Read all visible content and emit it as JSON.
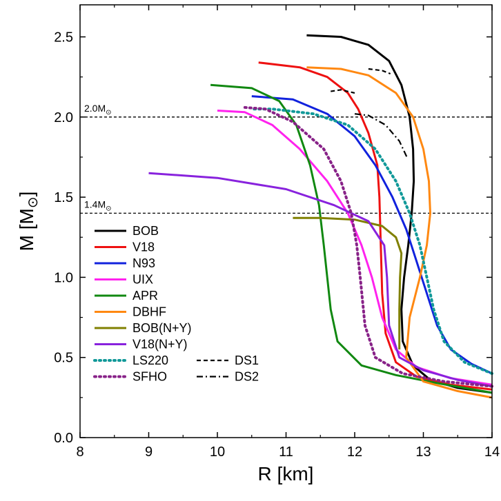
{
  "chart_data": {
    "type": "line",
    "xlabel": "R [km]",
    "ylabel": "M [M",
    "ylabel_symbol": "⊙",
    "ylabel_close": "]",
    "xlim": [
      8,
      14
    ],
    "ylim": [
      0.0,
      2.7
    ],
    "xticks": [
      "8",
      "9",
      "10",
      "11",
      "12",
      "13",
      "14"
    ],
    "yticks": [
      "0.0",
      "0.5",
      "1.0",
      "1.5",
      "2.0",
      "2.5"
    ],
    "reference_lines": [
      {
        "y": 2.0,
        "label": "2.0M",
        "sub": "⊙"
      },
      {
        "y": 1.4,
        "label": "1.4M",
        "sub": "⊙"
      }
    ],
    "series": [
      {
        "name": "BOB",
        "color": "#000000",
        "style": "solid",
        "points": [
          [
            14,
            0.28
          ],
          [
            13.5,
            0.31
          ],
          [
            13.1,
            0.36
          ],
          [
            12.85,
            0.45
          ],
          [
            12.7,
            0.6
          ],
          [
            12.68,
            0.8
          ],
          [
            12.72,
            1.0
          ],
          [
            12.78,
            1.2
          ],
          [
            12.83,
            1.4
          ],
          [
            12.86,
            1.6
          ],
          [
            12.85,
            1.8
          ],
          [
            12.8,
            2.0
          ],
          [
            12.68,
            2.2
          ],
          [
            12.5,
            2.35
          ],
          [
            12.2,
            2.45
          ],
          [
            11.8,
            2.5
          ],
          [
            11.3,
            2.51
          ]
        ]
      },
      {
        "name": "V18",
        "color": "#ee1111",
        "style": "solid",
        "points": [
          [
            14,
            0.3
          ],
          [
            13.4,
            0.33
          ],
          [
            12.9,
            0.38
          ],
          [
            12.6,
            0.47
          ],
          [
            12.45,
            0.65
          ],
          [
            12.4,
            0.9
          ],
          [
            12.38,
            1.2
          ],
          [
            12.36,
            1.5
          ],
          [
            12.33,
            1.7
          ],
          [
            12.2,
            1.9
          ],
          [
            12.05,
            2.05
          ],
          [
            11.9,
            2.15
          ],
          [
            11.6,
            2.25
          ],
          [
            11.2,
            2.31
          ],
          [
            10.6,
            2.34
          ]
        ]
      },
      {
        "name": "N93",
        "color": "#1122dd",
        "style": "solid",
        "points": [
          [
            14,
            0.4
          ],
          [
            13.7,
            0.46
          ],
          [
            13.4,
            0.55
          ],
          [
            13.2,
            0.7
          ],
          [
            13.05,
            0.9
          ],
          [
            12.9,
            1.1
          ],
          [
            12.75,
            1.3
          ],
          [
            12.55,
            1.5
          ],
          [
            12.3,
            1.7
          ],
          [
            12.0,
            1.88
          ],
          [
            11.6,
            2.02
          ],
          [
            11.1,
            2.11
          ],
          [
            10.5,
            2.13
          ]
        ]
      },
      {
        "name": "UIX",
        "color": "#ff22ee",
        "style": "solid",
        "points": [
          [
            14,
            0.33
          ],
          [
            13.4,
            0.37
          ],
          [
            12.9,
            0.44
          ],
          [
            12.6,
            0.55
          ],
          [
            12.4,
            0.75
          ],
          [
            12.25,
            1.0
          ],
          [
            12.1,
            1.2
          ],
          [
            11.9,
            1.4
          ],
          [
            11.6,
            1.6
          ],
          [
            11.2,
            1.8
          ],
          [
            10.8,
            1.95
          ],
          [
            10.4,
            2.03
          ],
          [
            10.0,
            2.04
          ]
        ]
      },
      {
        "name": "APR",
        "color": "#118811",
        "style": "solid",
        "points": [
          [
            14,
            0.28
          ],
          [
            13.2,
            0.34
          ],
          [
            12.6,
            0.39
          ],
          [
            12.1,
            0.45
          ],
          [
            11.75,
            0.6
          ],
          [
            11.65,
            0.8
          ],
          [
            11.6,
            1.0
          ],
          [
            11.55,
            1.2
          ],
          [
            11.48,
            1.45
          ],
          [
            11.35,
            1.7
          ],
          [
            11.15,
            1.95
          ],
          [
            10.9,
            2.1
          ],
          [
            10.5,
            2.18
          ],
          [
            9.9,
            2.2
          ]
        ]
      },
      {
        "name": "DBHF",
        "color": "#ff8811",
        "style": "solid",
        "points": [
          [
            14,
            0.25
          ],
          [
            13.5,
            0.29
          ],
          [
            13.0,
            0.35
          ],
          [
            12.75,
            0.5
          ],
          [
            12.8,
            0.75
          ],
          [
            12.95,
            1.0
          ],
          [
            13.05,
            1.2
          ],
          [
            13.1,
            1.4
          ],
          [
            13.08,
            1.6
          ],
          [
            13.0,
            1.8
          ],
          [
            12.85,
            2.0
          ],
          [
            12.6,
            2.15
          ],
          [
            12.2,
            2.26
          ],
          [
            11.8,
            2.3
          ],
          [
            11.3,
            2.31
          ]
        ]
      },
      {
        "name": "BOB(N+Y)",
        "color": "#808000",
        "style": "solid",
        "points": [
          [
            12.65,
            0.55
          ],
          [
            12.65,
            0.8
          ],
          [
            12.66,
            1.0
          ],
          [
            12.68,
            1.15
          ],
          [
            12.6,
            1.25
          ],
          [
            12.4,
            1.32
          ],
          [
            12.0,
            1.36
          ],
          [
            11.5,
            1.37
          ],
          [
            11.1,
            1.37
          ]
        ]
      },
      {
        "name": "V18(N+Y)",
        "color": "#8822dd",
        "style": "solid",
        "points": [
          [
            14,
            0.32
          ],
          [
            13.5,
            0.36
          ],
          [
            13.0,
            0.42
          ],
          [
            12.65,
            0.5
          ],
          [
            12.5,
            0.7
          ],
          [
            12.47,
            1.0
          ],
          [
            12.43,
            1.2
          ],
          [
            12.2,
            1.35
          ],
          [
            11.7,
            1.45
          ],
          [
            11.0,
            1.55
          ],
          [
            10.0,
            1.62
          ],
          [
            9.0,
            1.65
          ]
        ]
      },
      {
        "name": "LS220",
        "color": "#119999",
        "style": "dotted",
        "points": [
          [
            14,
            0.4
          ],
          [
            13.6,
            0.47
          ],
          [
            13.3,
            0.6
          ],
          [
            13.15,
            0.8
          ],
          [
            13.05,
            1.0
          ],
          [
            12.95,
            1.2
          ],
          [
            12.8,
            1.4
          ],
          [
            12.6,
            1.6
          ],
          [
            12.3,
            1.8
          ],
          [
            11.9,
            1.95
          ],
          [
            11.4,
            2.02
          ],
          [
            10.8,
            2.05
          ],
          [
            10.5,
            2.05
          ]
        ]
      },
      {
        "name": "SFHO",
        "color": "#882288",
        "style": "dotted",
        "points": [
          [
            14,
            0.32
          ],
          [
            13.3,
            0.35
          ],
          [
            12.7,
            0.4
          ],
          [
            12.3,
            0.5
          ],
          [
            12.15,
            0.7
          ],
          [
            12.08,
            1.0
          ],
          [
            12.03,
            1.2
          ],
          [
            11.95,
            1.4
          ],
          [
            11.8,
            1.6
          ],
          [
            11.55,
            1.8
          ],
          [
            11.1,
            1.97
          ],
          [
            10.7,
            2.05
          ],
          [
            10.4,
            2.06
          ]
        ]
      },
      {
        "name": "DS1",
        "color": "#000000",
        "style": "dashed",
        "points": [
          [
            12.2,
            2.3
          ],
          [
            12.4,
            2.29
          ],
          [
            12.52,
            2.27
          ],
          [
            11.65,
            2.16
          ],
          [
            11.8,
            2.17
          ],
          [
            12.0,
            2.15
          ]
        ]
      },
      {
        "name": "DS2",
        "color": "#000000",
        "style": "dashdot",
        "points": [
          [
            12.0,
            2.02
          ],
          [
            12.2,
            2.01
          ],
          [
            12.45,
            1.95
          ],
          [
            12.65,
            1.85
          ],
          [
            12.76,
            1.75
          ]
        ]
      }
    ],
    "legend": {
      "position": "lower-left",
      "entries": [
        "BOB",
        "V18",
        "N93",
        "UIX",
        "APR",
        "DBHF",
        "BOB(N+Y)",
        "V18(N+Y)",
        "LS220",
        "SFHO",
        "DS1",
        "DS2"
      ]
    },
    "grid": false
  }
}
